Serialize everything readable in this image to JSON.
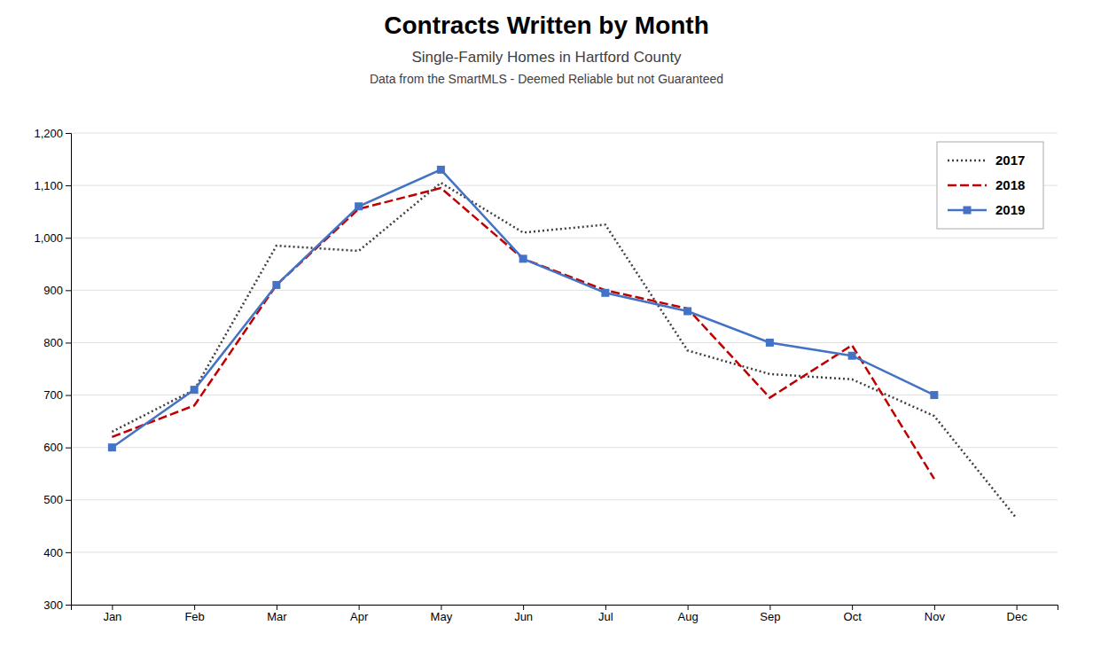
{
  "chart_data": {
    "type": "line",
    "title": "Contracts Written by Month",
    "subtitle": [
      "Single-Family Homes in Hartford County",
      "Data from the SmartMLS - Deemed Reliable but not Guaranteed"
    ],
    "categories": [
      "Jan",
      "Feb",
      "Mar",
      "Apr",
      "May",
      "Jun",
      "Jul",
      "Aug",
      "Sep",
      "Oct",
      "Nov",
      "Dec"
    ],
    "series": [
      {
        "name": "2017",
        "color": "#404040",
        "line_style": "dotted",
        "values": [
          630,
          710,
          985,
          975,
          1105,
          1010,
          1025,
          785,
          740,
          730,
          660,
          465
        ]
      },
      {
        "name": "2018",
        "color": "#c00000",
        "line_style": "dashed",
        "values": [
          620,
          680,
          910,
          1055,
          1095,
          960,
          900,
          865,
          695,
          795,
          540,
          null
        ]
      },
      {
        "name": "2019",
        "color": "#4472c4",
        "line_style": "solid",
        "marker": "square",
        "values": [
          600,
          710,
          910,
          1060,
          1130,
          960,
          895,
          860,
          800,
          775,
          700,
          null
        ]
      }
    ],
    "ylim": [
      300,
      1200
    ],
    "yticks": [
      300,
      400,
      500,
      600,
      700,
      800,
      900,
      {
        "value": 1000,
        "label": "1,000"
      },
      {
        "value": 1100,
        "label": "1,100"
      },
      {
        "value": 1200,
        "label": "1,200"
      }
    ],
    "grid": true,
    "legend": "upper right"
  }
}
